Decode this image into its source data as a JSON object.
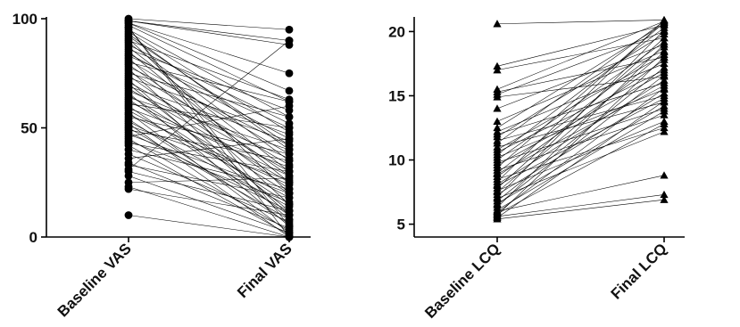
{
  "chart_data": [
    {
      "type": "scatter",
      "subtype": "paired-dot",
      "title": "",
      "xlabel": "",
      "ylabel": "",
      "categories": [
        "Baseline VAS",
        "Final VAS"
      ],
      "ylim": [
        0,
        100
      ],
      "yticks": [
        0,
        50,
        100
      ],
      "marker": "circle",
      "grid": false,
      "legend": "none",
      "pairs": [
        [
          100,
          95
        ],
        [
          99,
          90
        ],
        [
          99,
          88
        ],
        [
          98,
          75
        ],
        [
          98,
          67
        ],
        [
          97,
          62
        ],
        [
          96,
          0
        ],
        [
          96,
          5
        ],
        [
          95,
          55
        ],
        [
          94,
          48
        ],
        [
          93,
          40
        ],
        [
          92,
          42
        ],
        [
          91,
          20
        ],
        [
          90,
          63
        ],
        [
          89,
          35
        ],
        [
          88,
          52
        ],
        [
          87,
          30
        ],
        [
          86,
          58
        ],
        [
          85,
          25
        ],
        [
          84,
          45
        ],
        [
          83,
          50
        ],
        [
          82,
          15
        ],
        [
          81,
          38
        ],
        [
          80,
          62
        ],
        [
          79,
          28
        ],
        [
          78,
          42
        ],
        [
          77,
          10
        ],
        [
          76,
          33
        ],
        [
          75,
          55
        ],
        [
          74,
          22
        ],
        [
          73,
          47
        ],
        [
          72,
          8
        ],
        [
          71,
          30
        ],
        [
          70,
          12
        ],
        [
          69,
          44
        ],
        [
          68,
          25
        ],
        [
          67,
          36
        ],
        [
          66,
          5
        ],
        [
          65,
          20
        ],
        [
          64,
          40
        ],
        [
          63,
          15
        ],
        [
          62,
          28
        ],
        [
          61,
          50
        ],
        [
          60,
          10
        ],
        [
          59,
          32
        ],
        [
          58,
          18
        ],
        [
          57,
          2
        ],
        [
          56,
          24
        ],
        [
          55,
          38
        ],
        [
          54,
          6
        ],
        [
          53,
          14
        ],
        [
          52,
          0
        ],
        [
          51,
          26
        ],
        [
          50,
          8
        ],
        [
          49,
          35
        ],
        [
          48,
          12
        ],
        [
          47,
          20
        ],
        [
          46,
          60
        ],
        [
          45,
          3
        ],
        [
          44,
          16
        ],
        [
          43,
          30
        ],
        [
          42,
          1
        ],
        [
          40,
          22
        ],
        [
          38,
          7
        ],
        [
          36,
          45
        ],
        [
          34,
          4
        ],
        [
          33,
          18
        ],
        [
          31,
          90
        ],
        [
          30,
          12
        ],
        [
          28,
          2
        ],
        [
          25,
          27
        ],
        [
          23,
          0
        ],
        [
          22,
          10
        ],
        [
          10,
          0
        ]
      ]
    },
    {
      "type": "scatter",
      "subtype": "paired-dot",
      "title": "",
      "xlabel": "",
      "ylabel": "",
      "categories": [
        "Baseline LCQ",
        "Final LCQ"
      ],
      "ylim": [
        4,
        21
      ],
      "yticks": [
        5,
        10,
        15,
        20
      ],
      "marker": "triangle",
      "grid": false,
      "legend": "none",
      "pairs": [
        [
          20.6,
          20.9
        ],
        [
          17.3,
          20.5
        ],
        [
          17.0,
          19.5
        ],
        [
          15.5,
          20.8
        ],
        [
          15.3,
          18.0
        ],
        [
          15.1,
          20.0
        ],
        [
          14.9,
          16.5
        ],
        [
          14.0,
          19.0
        ],
        [
          13.0,
          18.5
        ],
        [
          12.5,
          20.6
        ],
        [
          12.2,
          17.5
        ],
        [
          12.0,
          16.0
        ],
        [
          11.8,
          19.8
        ],
        [
          11.5,
          15.0
        ],
        [
          11.3,
          20.8
        ],
        [
          11.0,
          14.5
        ],
        [
          10.8,
          18.2
        ],
        [
          10.6,
          17.0
        ],
        [
          10.4,
          20.3
        ],
        [
          10.2,
          15.5
        ],
        [
          10.0,
          19.2
        ],
        [
          9.8,
          14.0
        ],
        [
          9.6,
          16.8
        ],
        [
          9.4,
          20.7
        ],
        [
          9.2,
          13.5
        ],
        [
          9.0,
          18.8
        ],
        [
          8.9,
          15.8
        ],
        [
          8.7,
          17.8
        ],
        [
          8.5,
          12.5
        ],
        [
          8.3,
          20.9
        ],
        [
          8.1,
          16.2
        ],
        [
          8.0,
          14.8
        ],
        [
          7.8,
          19.5
        ],
        [
          7.6,
          13.0
        ],
        [
          7.5,
          18.4
        ],
        [
          7.3,
          15.2
        ],
        [
          7.1,
          20.1
        ],
        [
          7.0,
          12.2
        ],
        [
          6.8,
          17.2
        ],
        [
          6.6,
          14.2
        ],
        [
          6.5,
          16.6
        ],
        [
          6.3,
          19.0
        ],
        [
          6.1,
          13.8
        ],
        [
          6.0,
          8.8
        ],
        [
          5.9,
          15.6
        ],
        [
          5.8,
          12.8
        ],
        [
          5.7,
          18.0
        ],
        [
          5.6,
          7.3
        ],
        [
          5.5,
          14.6
        ],
        [
          5.4,
          6.9
        ]
      ]
    }
  ]
}
